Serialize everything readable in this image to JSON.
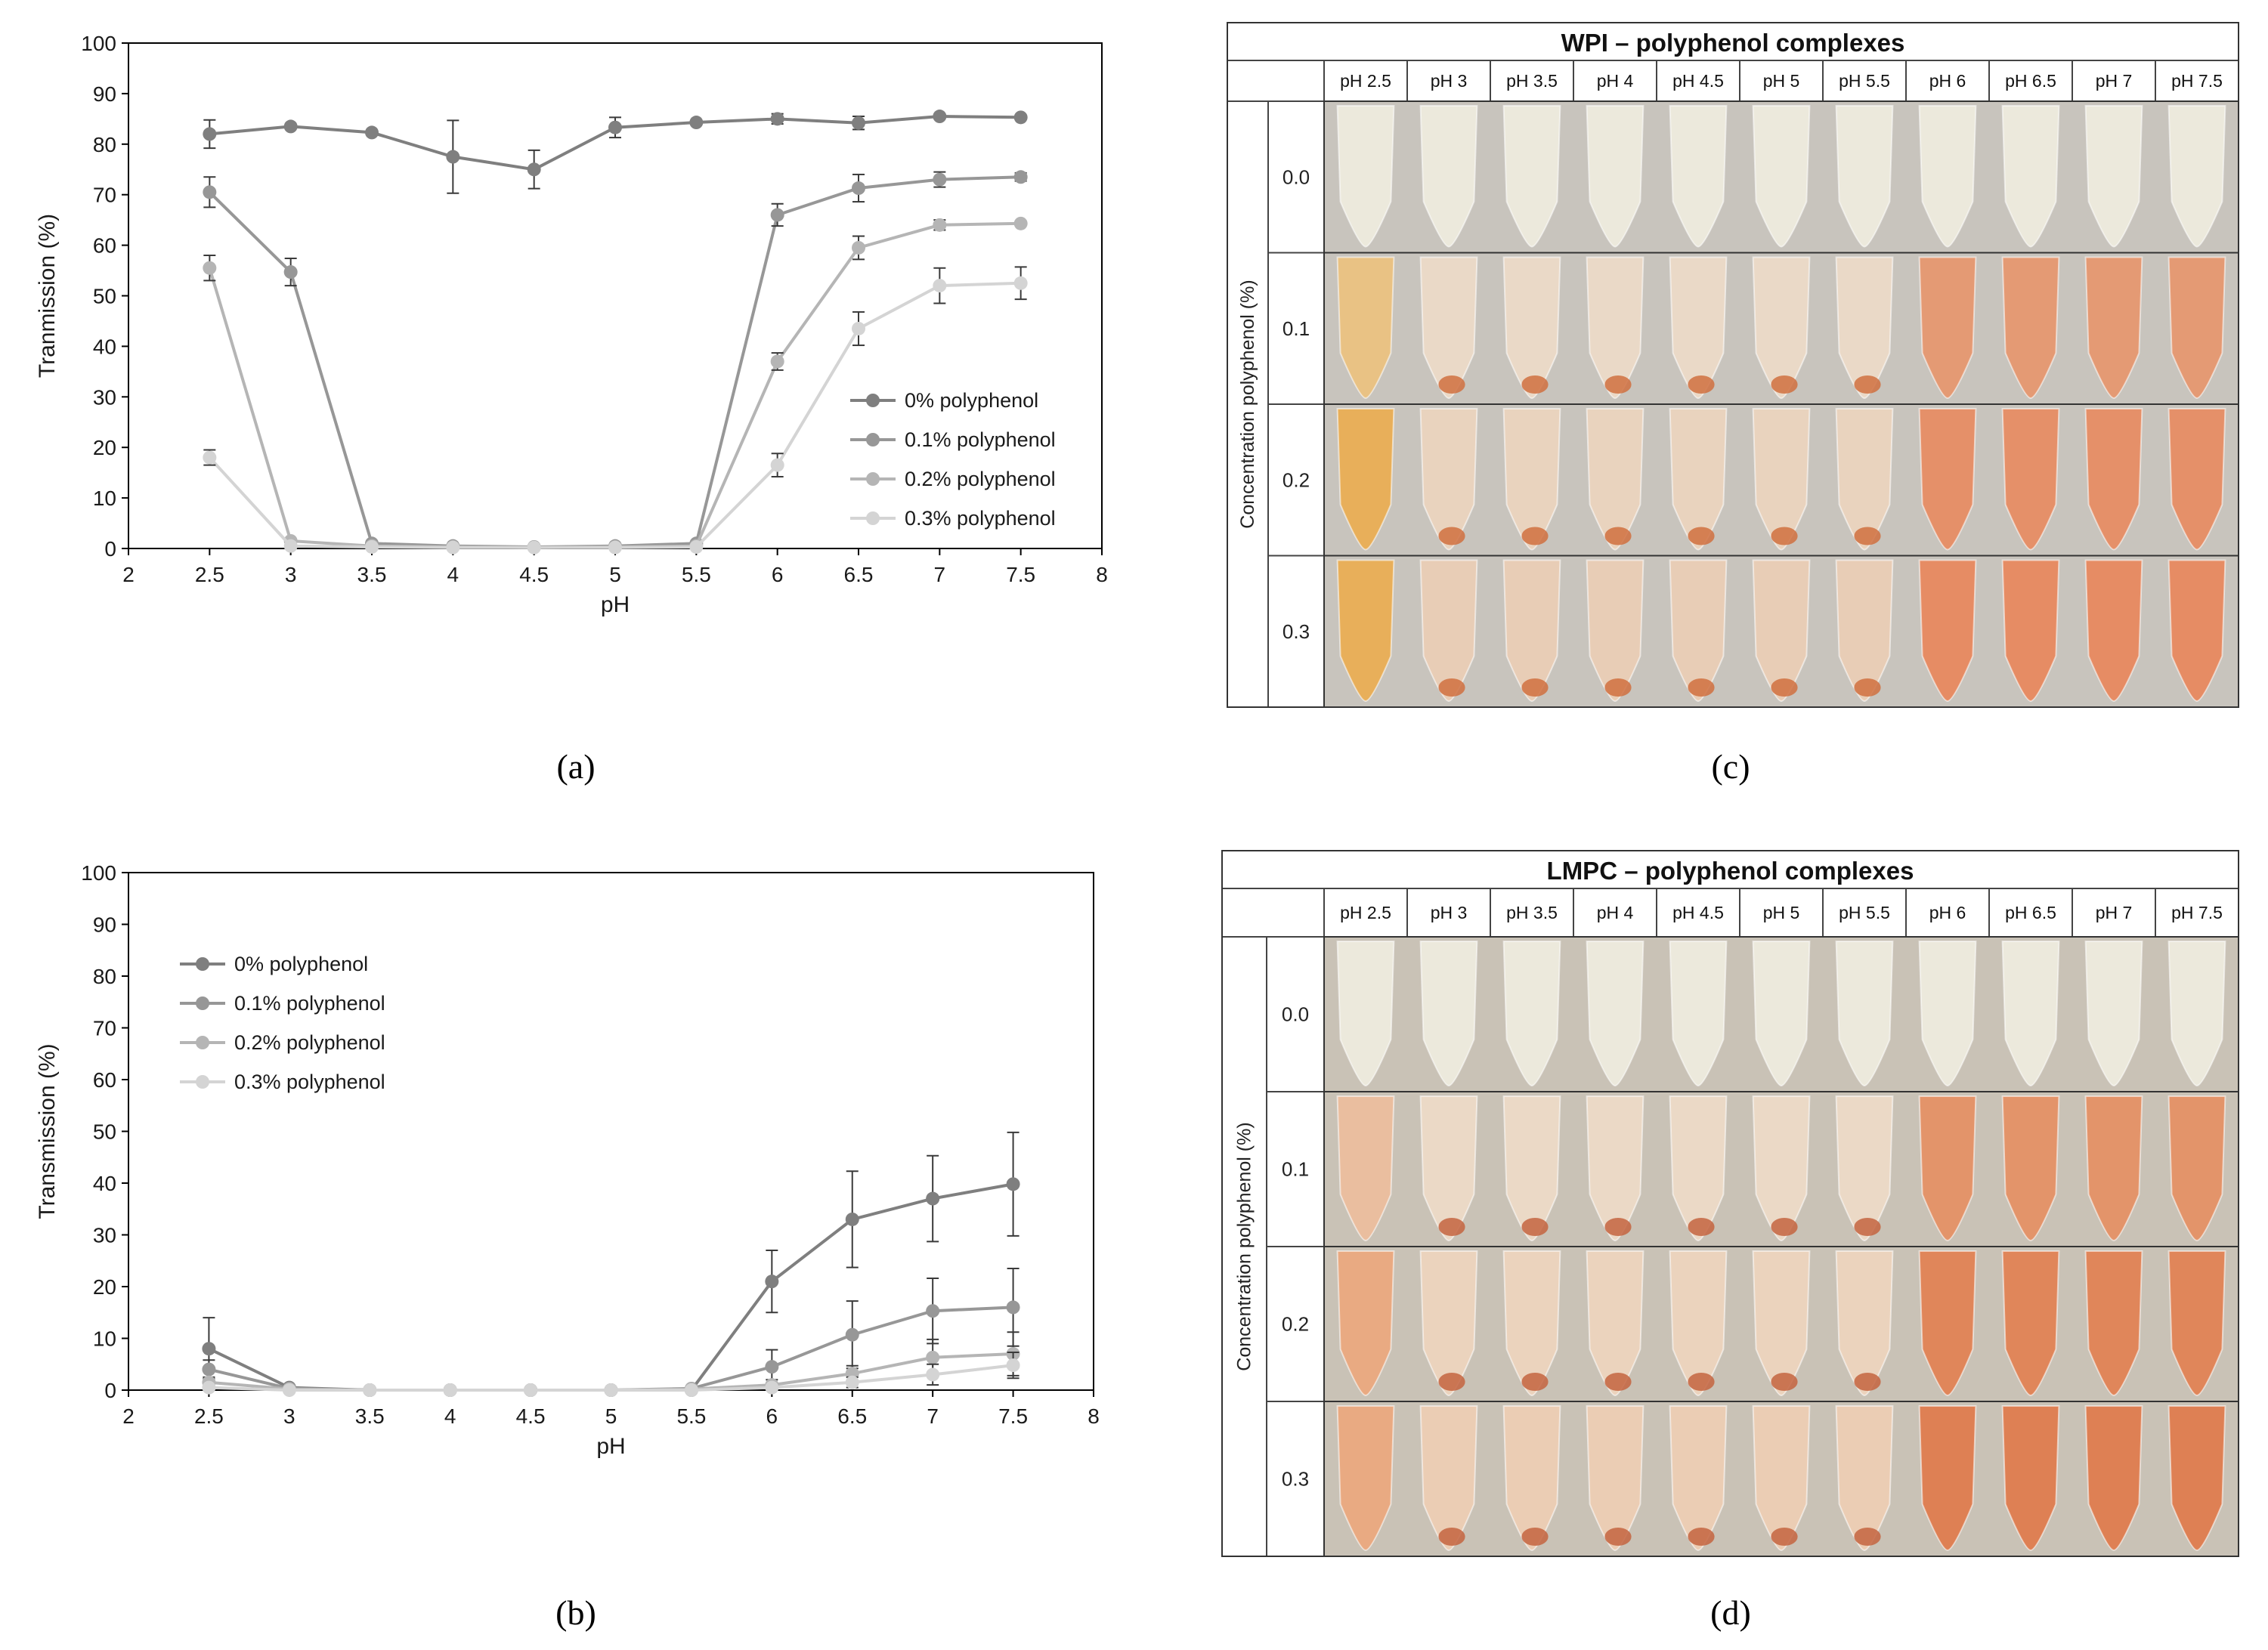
{
  "charts": [
    {
      "id": "a",
      "panel_label": "(a)",
      "type": "line",
      "ylabel": "Tranmission (%)",
      "xlabel": "pH",
      "xlim": [
        2,
        8
      ],
      "ylim": [
        0,
        100
      ],
      "xticks": [
        "2",
        "2.5",
        "3",
        "3.5",
        "4",
        "4.5",
        "5",
        "5.5",
        "6",
        "6.5",
        "7",
        "7.5",
        "8"
      ],
      "yticks": [
        "0",
        "10",
        "20",
        "30",
        "40",
        "50",
        "60",
        "70",
        "80",
        "90",
        "100"
      ],
      "legend_position": "bottom-right",
      "x": [
        2.5,
        3,
        3.5,
        4,
        4.5,
        5,
        5.5,
        6,
        6.5,
        7,
        7.5
      ],
      "series": [
        {
          "name": "0% polyphenol",
          "color": "#7f7f7f",
          "values": [
            82,
            83.5,
            82.3,
            77.5,
            75,
            83.3,
            84.3,
            85,
            84.2,
            85.5,
            85.3
          ],
          "errors": [
            2.8,
            0.5,
            0.5,
            7.2,
            3.8,
            2,
            0.5,
            1,
            1.3,
            0.5,
            0.5
          ]
        },
        {
          "name": "0.1% polyphenol",
          "color": "#979797",
          "values": [
            70.5,
            54.7,
            1,
            0.5,
            0.3,
            0.5,
            1,
            66,
            71.3,
            73,
            73.5
          ],
          "errors": [
            3,
            2.7,
            0.3,
            0.2,
            0.2,
            0.2,
            0.3,
            2.2,
            2.7,
            1.5,
            0.8
          ]
        },
        {
          "name": "0.2% polyphenol",
          "color": "#b5b5b5",
          "values": [
            55.5,
            1.5,
            0.5,
            0.3,
            0.2,
            0.3,
            0.5,
            37,
            59.5,
            64,
            64.3
          ],
          "errors": [
            2.5,
            0.3,
            0.2,
            0.2,
            0.2,
            0.2,
            0.2,
            1.7,
            2.3,
            1,
            0.5
          ]
        },
        {
          "name": "0.3% polyphenol",
          "color": "#d4d4d4",
          "values": [
            18,
            0.5,
            0.3,
            0.2,
            0.2,
            0.2,
            0.3,
            16.5,
            43.5,
            52,
            52.5
          ],
          "errors": [
            1.5,
            0.3,
            0.2,
            0.2,
            0.2,
            0.2,
            0.2,
            2.3,
            3.3,
            3.5,
            3.2
          ]
        }
      ]
    },
    {
      "id": "b",
      "panel_label": "(b)",
      "type": "line",
      "ylabel": "Transmission (%)",
      "xlabel": "pH",
      "xlim": [
        2,
        8
      ],
      "ylim": [
        0,
        100
      ],
      "xticks": [
        "2",
        "2.5",
        "3",
        "3.5",
        "4",
        "4.5",
        "5",
        "5.5",
        "6",
        "6.5",
        "7",
        "7.5",
        "8"
      ],
      "yticks": [
        "0",
        "10",
        "20",
        "30",
        "40",
        "50",
        "60",
        "70",
        "80",
        "90",
        "100"
      ],
      "legend_position": "top-left",
      "x": [
        2.5,
        3,
        3.5,
        4,
        4.5,
        5,
        5.5,
        6,
        6.5,
        7,
        7.5
      ],
      "series": [
        {
          "name": "0% polyphenol",
          "color": "#7f7f7f",
          "values": [
            8,
            0.5,
            0,
            0,
            0,
            0,
            0,
            21,
            33,
            37,
            39.8
          ],
          "errors": [
            6,
            0.3,
            0.2,
            0.2,
            0.2,
            0.2,
            0.2,
            6,
            9.3,
            8.3,
            10
          ]
        },
        {
          "name": "0.1% polyphenol",
          "color": "#979797",
          "values": [
            4,
            0.3,
            0,
            0,
            0,
            0,
            0.3,
            4.5,
            10.7,
            15.3,
            16
          ],
          "errors": [
            1.8,
            0.2,
            0.2,
            0.2,
            0.2,
            0.2,
            0.2,
            3.3,
            6.5,
            6.3,
            7.5
          ]
        },
        {
          "name": "0.2% polyphenol",
          "color": "#b5b5b5",
          "values": [
            1.5,
            0.2,
            0,
            0,
            0,
            0,
            0.2,
            1,
            3.2,
            6.3,
            7
          ],
          "errors": [
            1,
            0.2,
            0.2,
            0.2,
            0.2,
            0.2,
            0.2,
            1,
            1.5,
            3.5,
            4.2
          ]
        },
        {
          "name": "0.3% polyphenol",
          "color": "#d4d4d4",
          "values": [
            0.5,
            0,
            0,
            0,
            0,
            0,
            0,
            0.5,
            1.5,
            3,
            4.8
          ],
          "errors": [
            0.5,
            0.2,
            0.2,
            0.2,
            0.2,
            0.2,
            0.2,
            0.5,
            1,
            2,
            2.5
          ]
        }
      ]
    }
  ],
  "photo_grids": [
    {
      "id": "c",
      "panel_label": "(c)",
      "title": "WPI – polyphenol complexes",
      "ph_labels": [
        "pH 2.5",
        "pH 3",
        "pH 3.5",
        "pH 4",
        "pH 4.5",
        "pH 5",
        "pH 5.5",
        "pH 6",
        "pH 6.5",
        "pH 7",
        "pH 7.5"
      ],
      "row_axis_label": "Concentration polyphenol (%)",
      "row_labels": [
        "0.0",
        "0.1",
        "0.2",
        "0.3"
      ]
    },
    {
      "id": "d",
      "panel_label": "(d)",
      "title": "LMPC – polyphenol complexes",
      "ph_labels": [
        "pH 2.5",
        "pH 3",
        "pH 3.5",
        "pH 4",
        "pH 4.5",
        "pH 5",
        "pH 5.5",
        "pH 6",
        "pH 6.5",
        "pH 7",
        "pH 7.5"
      ],
      "row_axis_label": "Concentration polyphenol (%)",
      "row_labels": [
        "0.0",
        "0.1",
        "0.2",
        "0.3"
      ]
    }
  ]
}
